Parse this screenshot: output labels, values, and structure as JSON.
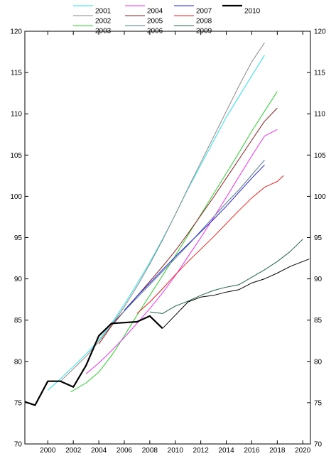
{
  "chart_data": {
    "type": "line",
    "title": "",
    "xlabel": "",
    "ylabel": "",
    "xlim": [
      1998.2,
      2020.6
    ],
    "ylim": [
      70,
      120
    ],
    "x_ticks": [
      2000,
      2002,
      2004,
      2006,
      2008,
      2010,
      2012,
      2014,
      2016,
      2018,
      2020
    ],
    "y_ticks": [
      70,
      75,
      80,
      85,
      90,
      95,
      100,
      105,
      110,
      115,
      120
    ],
    "y_axis_labels": "left-and-right",
    "grid": false,
    "legend_position": "top",
    "series": [
      {
        "name": "2001",
        "color": "#33ddee",
        "width": 1,
        "points": [
          [
            2000,
            76.5
          ],
          [
            2001,
            77.9
          ],
          [
            2002,
            79.4
          ],
          [
            2003,
            80.9
          ],
          [
            2004,
            82.6
          ],
          [
            2005,
            84.6
          ],
          [
            2006,
            86.9
          ],
          [
            2007,
            89.4
          ],
          [
            2008,
            92.0
          ],
          [
            2009,
            94.8
          ],
          [
            2010,
            97.8
          ],
          [
            2011,
            100.9
          ],
          [
            2012,
            103.8
          ],
          [
            2013,
            106.7
          ],
          [
            2014,
            109.6
          ],
          [
            2015,
            112.1
          ],
          [
            2016,
            114.6
          ],
          [
            2017,
            117.1
          ]
        ]
      },
      {
        "name": "2002",
        "color": "#888888",
        "width": 1,
        "points": [
          [
            2001,
            77.6
          ],
          [
            2002,
            79.1
          ],
          [
            2003,
            80.6
          ],
          [
            2004,
            82.4
          ],
          [
            2005,
            84.4
          ],
          [
            2006,
            86.6
          ],
          [
            2007,
            89.1
          ],
          [
            2008,
            91.8
          ],
          [
            2009,
            94.7
          ],
          [
            2010,
            97.8
          ],
          [
            2011,
            101.0
          ],
          [
            2012,
            104.1
          ],
          [
            2013,
            107.2
          ],
          [
            2014,
            110.3
          ],
          [
            2015,
            113.4
          ],
          [
            2016,
            116.3
          ],
          [
            2017,
            118.6
          ]
        ]
      },
      {
        "name": "2003",
        "color": "#33cc33",
        "width": 1,
        "points": [
          [
            2001.8,
            76.3
          ],
          [
            2003,
            77.4
          ],
          [
            2004,
            78.7
          ],
          [
            2005,
            80.7
          ],
          [
            2006,
            83.1
          ],
          [
            2007,
            85.6
          ],
          [
            2008,
            88.0
          ],
          [
            2009,
            90.4
          ],
          [
            2010,
            92.8
          ],
          [
            2011,
            95.3
          ],
          [
            2012,
            97.8
          ],
          [
            2013,
            100.3
          ],
          [
            2014,
            102.8
          ],
          [
            2015,
            105.3
          ],
          [
            2016,
            107.9
          ],
          [
            2017,
            110.3
          ],
          [
            2018,
            112.7
          ]
        ]
      },
      {
        "name": "2004",
        "color": "#ee33ee",
        "width": 1,
        "points": [
          [
            2003,
            78.5
          ],
          [
            2004,
            79.8
          ],
          [
            2005,
            81.3
          ],
          [
            2006,
            82.9
          ],
          [
            2007,
            84.6
          ],
          [
            2008,
            86.4
          ],
          [
            2009,
            88.3
          ],
          [
            2010,
            90.4
          ],
          [
            2011,
            92.7
          ],
          [
            2012,
            95.0
          ],
          [
            2013,
            97.4
          ],
          [
            2014,
            99.9
          ],
          [
            2015,
            102.4
          ],
          [
            2016,
            104.9
          ],
          [
            2017,
            107.3
          ],
          [
            2018,
            108.1
          ]
        ]
      },
      {
        "name": "2005",
        "color": "#882222",
        "width": 1,
        "points": [
          [
            2004,
            82.1
          ],
          [
            2005,
            84.3
          ],
          [
            2006,
            86.1
          ],
          [
            2007,
            87.9
          ],
          [
            2008,
            89.7
          ],
          [
            2009,
            91.5
          ],
          [
            2010,
            93.4
          ],
          [
            2011,
            95.5
          ],
          [
            2012,
            97.7
          ],
          [
            2013,
            99.9
          ],
          [
            2014,
            102.2
          ],
          [
            2015,
            104.5
          ],
          [
            2016,
            106.8
          ],
          [
            2017,
            109.1
          ],
          [
            2018,
            110.7
          ]
        ]
      },
      {
        "name": "2006",
        "color": "#557799",
        "width": 1,
        "points": [
          [
            2005,
            84.5
          ],
          [
            2006,
            86.1
          ],
          [
            2007,
            87.7
          ],
          [
            2008,
            89.3
          ],
          [
            2009,
            90.9
          ],
          [
            2010,
            92.5
          ],
          [
            2011,
            94.1
          ],
          [
            2012,
            95.8
          ],
          [
            2013,
            97.5
          ],
          [
            2014,
            99.2
          ],
          [
            2015,
            100.8
          ],
          [
            2016,
            102.6
          ],
          [
            2017,
            104.4
          ]
        ]
      },
      {
        "name": "2007",
        "color": "#2222cc",
        "width": 1,
        "points": [
          [
            2006,
            86.2
          ],
          [
            2007,
            87.9
          ],
          [
            2008,
            89.5
          ],
          [
            2009,
            91.1
          ],
          [
            2010,
            92.7
          ],
          [
            2011,
            94.2
          ],
          [
            2012,
            95.7
          ],
          [
            2013,
            97.2
          ],
          [
            2014,
            98.8
          ],
          [
            2015,
            100.5
          ],
          [
            2016,
            102.2
          ],
          [
            2017,
            103.8
          ]
        ]
      },
      {
        "name": "2008",
        "color": "#ee2222",
        "width": 1,
        "points": [
          [
            2007,
            85.8
          ],
          [
            2008,
            87.2
          ],
          [
            2009,
            88.8
          ],
          [
            2010,
            90.5
          ],
          [
            2011,
            92.1
          ],
          [
            2012,
            93.6
          ],
          [
            2013,
            95.1
          ],
          [
            2014,
            96.7
          ],
          [
            2015,
            98.3
          ],
          [
            2016,
            99.8
          ],
          [
            2017,
            101.1
          ],
          [
            2018,
            101.8
          ],
          [
            2018.5,
            102.5
          ]
        ]
      },
      {
        "name": "2009",
        "color": "#226644",
        "width": 1,
        "points": [
          [
            2008,
            86.0
          ],
          [
            2009,
            85.8
          ],
          [
            2010,
            86.7
          ],
          [
            2011,
            87.3
          ],
          [
            2012,
            88.0
          ],
          [
            2013,
            88.6
          ],
          [
            2014,
            89.0
          ],
          [
            2015,
            89.3
          ],
          [
            2016,
            90.2
          ],
          [
            2017,
            91.1
          ],
          [
            2018,
            92.1
          ],
          [
            2019,
            93.3
          ],
          [
            2020,
            94.8
          ]
        ]
      },
      {
        "name": "2010",
        "color": "#000000",
        "width": 2.2,
        "points": [
          [
            1998.2,
            75.1
          ],
          [
            1999,
            74.7
          ],
          [
            2000,
            77.6
          ],
          [
            2001,
            77.6
          ],
          [
            2002,
            76.9
          ],
          [
            2003,
            79.5
          ],
          [
            2004,
            83.1
          ],
          [
            2005,
            84.6
          ],
          [
            2006,
            84.7
          ],
          [
            2007,
            84.8
          ],
          [
            2008,
            85.5
          ],
          [
            2009,
            84.0
          ]
        ]
      }
    ],
    "extra_lines": [
      {
        "color": "#000000",
        "width": 1,
        "points": [
          [
            2009,
            84.0
          ],
          [
            2010,
            85.6
          ],
          [
            2011,
            87.2
          ],
          [
            2012,
            87.8
          ],
          [
            2013,
            88.0
          ],
          [
            2014,
            88.4
          ],
          [
            2015,
            88.7
          ],
          [
            2016,
            89.5
          ],
          [
            2017,
            90.0
          ],
          [
            2018,
            90.7
          ],
          [
            2019,
            91.5
          ],
          [
            2020,
            92.1
          ],
          [
            2020.5,
            92.4
          ]
        ]
      }
    ]
  }
}
